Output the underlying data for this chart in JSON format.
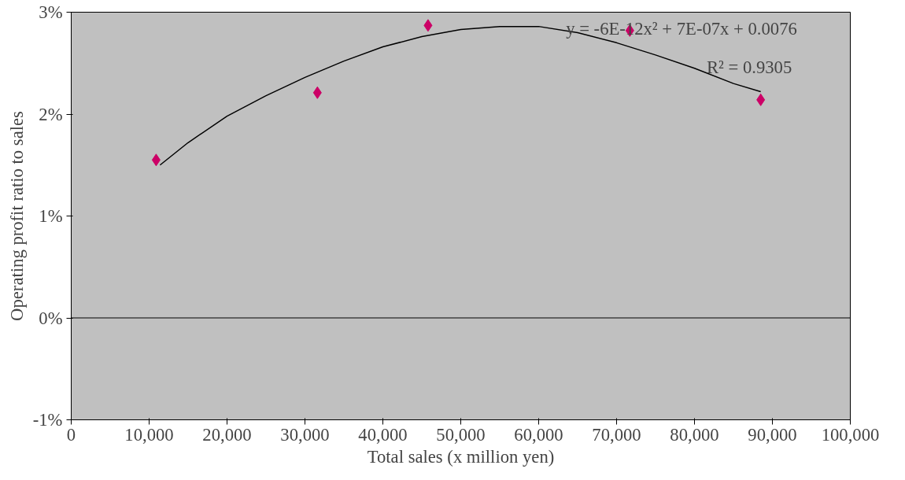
{
  "chart_data": {
    "type": "scatter",
    "xlabel": "Total sales (x million yen)",
    "ylabel": "Operating profit ratio to sales",
    "annotations": [
      "y = -6E-12x² + 7E-07x + 0.0076",
      "R² = 0.9305"
    ],
    "xlim": [
      0,
      100000
    ],
    "ylim": [
      -1,
      3
    ],
    "xticks": [
      0,
      {
        "value": 10000,
        "label": "10,000"
      },
      {
        "value": 20000,
        "label": "20,000"
      },
      {
        "value": 30000,
        "label": "30,000"
      },
      {
        "value": 40000,
        "label": "40,000"
      },
      {
        "value": 50000,
        "label": "50,000"
      },
      {
        "value": 60000,
        "label": "60,000"
      },
      {
        "value": 70000,
        "label": "70,000"
      },
      {
        "value": 80000,
        "label": "80,000"
      },
      {
        "value": 90000,
        "label": "90,000"
      },
      {
        "value": 100000,
        "label": "100,000"
      }
    ],
    "yticks": [
      {
        "value": -1,
        "label": "-1%"
      },
      {
        "value": 0,
        "label": "0%"
      },
      {
        "value": 1,
        "label": "1%"
      },
      {
        "value": 2,
        "label": "2%"
      },
      {
        "value": 3,
        "label": "3%"
      }
    ],
    "ref_lines": [
      {
        "axis": "y",
        "value": 0,
        "color": "#000000"
      }
    ],
    "grid": false,
    "series": [
      {
        "marker": "diamond",
        "color": "#cc0066",
        "x": [
          10900,
          31600,
          45800,
          71700,
          88500
        ],
        "values": [
          1.55,
          2.21,
          2.87,
          2.82,
          2.14
        ]
      },
      {
        "type": "line",
        "marker": "none",
        "line_style": "solid",
        "color": "#000000",
        "x": [
          11400,
          15000,
          20000,
          25000,
          30000,
          35000,
          40000,
          45000,
          50000,
          55000,
          60000,
          65000,
          70000,
          75000,
          80000,
          85000,
          88500
        ],
        "values": [
          1.5,
          1.72,
          1.98,
          2.18,
          2.36,
          2.52,
          2.66,
          2.76,
          2.83,
          2.86,
          2.86,
          2.8,
          2.7,
          2.58,
          2.45,
          2.3,
          2.22
        ]
      }
    ]
  }
}
